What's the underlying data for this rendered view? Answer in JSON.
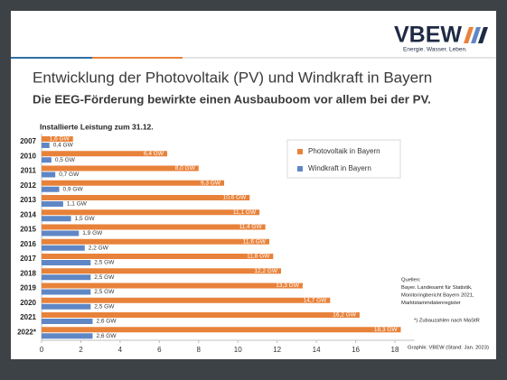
{
  "header": {
    "logo": "VBEW",
    "tagline": "Energie. Wasser. Leben."
  },
  "chart_data": {
    "type": "bar",
    "orientation": "horizontal",
    "title": "Entwicklung der Photovoltaik (PV) und Windkraft in Bayern",
    "subtitle": "Die EEG-Förderung bewirkte einen Ausbauboom vor allem bei der PV.",
    "axis_label": "Installierte Leistung zum 31.12.",
    "categories": [
      "2007",
      "2010",
      "2011",
      "2012",
      "2013",
      "2014",
      "2015",
      "2016",
      "2017",
      "2018",
      "2019",
      "2020",
      "2021",
      "2022*"
    ],
    "series": [
      {
        "name": "Photovoltaik in Bayern",
        "color": "#e8823a",
        "values": [
          1.6,
          6.4,
          8.0,
          9.3,
          10.6,
          11.1,
          11.4,
          11.6,
          11.8,
          12.2,
          13.3,
          14.7,
          16.2,
          18.3
        ],
        "value_labels": [
          "1,6 GW",
          "6,4 GW",
          "8,0 GW",
          "9,3 GW",
          "10,6 GW",
          "11,1 GW",
          "11,4 GW",
          "11,6 GW",
          "11,8 GW",
          "12,2 GW",
          "13,3 GW",
          "14,7 GW",
          "16,2 GW",
          "18,3 GW"
        ]
      },
      {
        "name": "Windkraft in Bayern",
        "color": "#5f87c5",
        "values": [
          0.4,
          0.5,
          0.7,
          0.9,
          1.1,
          1.5,
          1.9,
          2.2,
          2.5,
          2.5,
          2.5,
          2.5,
          2.6,
          2.6
        ],
        "value_labels": [
          "0,4 GW",
          "0,5 GW",
          "0,7 GW",
          "0,9 GW",
          "1,1 GW",
          "1,5 GW",
          "1,9 GW",
          "2,2 GW",
          "2,5 GW",
          "2,5 GW",
          "2,5 GW",
          "2,5 GW",
          "2,6 GW",
          "2,6 GW"
        ]
      }
    ],
    "xlim": [
      0,
      19
    ],
    "xticks": [
      0,
      2,
      4,
      6,
      8,
      10,
      12,
      14,
      16,
      18
    ],
    "grid": false,
    "legend": "top-right"
  },
  "notes": {
    "sources": [
      "Quellen:",
      "Bayer. Landesamt für Statistik,",
      "Monitoringbericht Bayern 2021,",
      "Marktstammdatenregister"
    ],
    "footnote": "*) Zubauzahlen nach MaStR",
    "credit": "Graphik: VBEW (Stand: Jan. 2023)"
  }
}
